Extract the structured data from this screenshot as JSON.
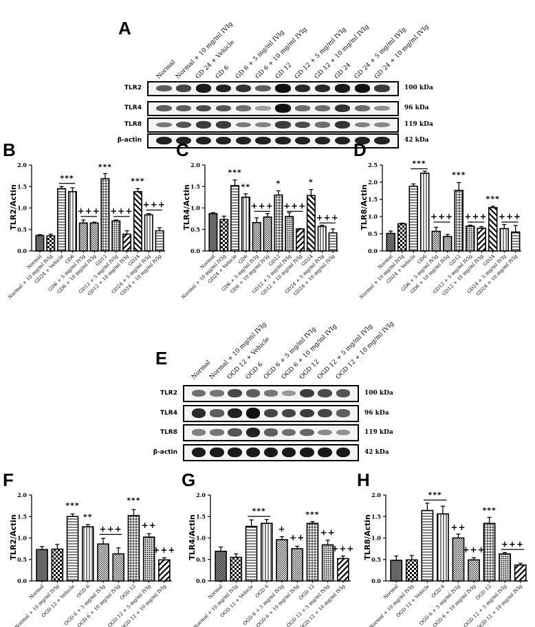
{
  "figure": {
    "panels": {
      "A": {
        "letter": "A",
        "type": "western_blot",
        "lanes": [
          "Normal",
          "Normal + 10 mg/ml IVIg",
          "GD 24 + Vehicle",
          "GD 6",
          "GD 6 + 5 mg/ml IVIg",
          "GD 6 + 10 mg/ml IVIg",
          "GD 12",
          "GD 12 + 5 mg/ml  IVIg",
          "GD 12 + 10 mg/ml IVIg",
          "GD 24",
          "GD 24 + 5 mg/ml IVIg",
          "GD 24 + 10 mg/ml IVIg"
        ],
        "rows": [
          {
            "name": "TLR2",
            "kda": "100 kDa",
            "intensity": [
              0.55,
              0.7,
              0.95,
              0.9,
              0.8,
              0.55,
              1.0,
              0.85,
              0.85,
              0.95,
              1.0,
              0.75
            ]
          },
          {
            "name": "TLR4",
            "kda": "96 kDa",
            "intensity": [
              0.55,
              0.55,
              0.65,
              0.6,
              0.45,
              0.15,
              1.0,
              0.45,
              0.45,
              0.8,
              0.45,
              0.25
            ]
          },
          {
            "name": "TLR8",
            "kda": "119 kDa",
            "intensity": [
              0.4,
              0.6,
              0.75,
              0.75,
              0.4,
              0.35,
              0.75,
              0.65,
              0.45,
              0.8,
              0.35,
              0.3
            ]
          },
          {
            "name": "β-actin",
            "kda": "42 kDa",
            "intensity": [
              0.9,
              0.9,
              0.9,
              0.9,
              0.9,
              0.9,
              0.9,
              0.9,
              0.9,
              0.9,
              0.9,
              0.9
            ]
          }
        ]
      },
      "E": {
        "letter": "E",
        "type": "western_blot",
        "lanes": [
          "Normal",
          "Normal + 10 mg/ml IVIg",
          "OGD 12 + Vehicle",
          "OGD 6",
          "OGD 6 + 5 mg/ml IVIg",
          "OGD 6 + 10 mg/ml IVIg",
          "OGD 12",
          "OGD 12 + 5 mg/ml IVIg",
          "OGD 12 + 10 mg/ml IVIg"
        ],
        "rows": [
          {
            "name": "TLR2",
            "kda": "100 kDa",
            "intensity": [
              0.45,
              0.4,
              0.7,
              0.55,
              0.4,
              0.2,
              0.75,
              0.65,
              0.6
            ]
          },
          {
            "name": "TLR4",
            "kda": "96 kDa",
            "intensity": [
              0.85,
              0.55,
              0.9,
              1.0,
              0.7,
              0.7,
              0.75,
              0.7,
              0.55
            ]
          },
          {
            "name": "TLR8",
            "kda": "119 kDa",
            "intensity": [
              0.35,
              0.4,
              0.6,
              0.9,
              0.55,
              0.45,
              0.5,
              0.3,
              0.25
            ]
          },
          {
            "name": "β-actin",
            "kda": "42 kDa",
            "intensity": [
              0.95,
              0.95,
              0.95,
              0.95,
              0.95,
              0.95,
              0.95,
              0.95,
              0.95
            ]
          }
        ]
      }
    }
  },
  "chart_data": [
    {
      "panel": "B",
      "type": "bar",
      "ylabel": "TLR2/Actin",
      "ylim": [
        0,
        2.0
      ],
      "yticks": [
        "0.0",
        "0.5",
        "1.0",
        "1.5",
        "2.0"
      ],
      "categories": [
        "Normal",
        "Normal + 10 mg/ml IVIg",
        "GD24 + Vehicle",
        "GD6",
        "GD6 + 5 mg/ml IVIg",
        "GD6 + 10 mg/ml IVIg",
        "GD12",
        "GD12 + 5 mg/ml IVIg",
        "GD12 + 10 mg/ml IVIg",
        "GD24",
        "GD24 + 5 mg/ml IVIg",
        "GD24 + 10 mg/ml IVIg"
      ],
      "values": [
        0.36,
        0.35,
        1.45,
        1.38,
        0.65,
        0.65,
        1.68,
        0.7,
        0.39,
        1.38,
        0.84,
        0.47
      ],
      "errors": [
        0.02,
        0.04,
        0.05,
        0.09,
        0.07,
        0.02,
        0.12,
        0.02,
        0.08,
        0.07,
        0.03,
        0.07
      ],
      "patterns": [
        "dense",
        "checker",
        "hlines",
        "vlines",
        "diag",
        "diag2",
        "grid",
        "dots",
        "bigdiag",
        "bigdiag2",
        "vlines",
        "hlines"
      ],
      "annotations": [
        {
          "text": "***",
          "from": 2,
          "to": 3,
          "line": true,
          "y": 1.62
        },
        {
          "text": "+++",
          "from": 4,
          "to": 5,
          "line": true,
          "y": 0.85
        },
        {
          "text": "***",
          "from": 6,
          "to": 6,
          "line": false,
          "y": 1.88
        },
        {
          "text": "+++",
          "from": 7,
          "to": 8,
          "line": true,
          "y": 0.85
        },
        {
          "text": "***",
          "from": 9,
          "to": 9,
          "line": false,
          "y": 1.55
        },
        {
          "text": "+++",
          "from": 10,
          "to": 11,
          "line": true,
          "y": 1.0
        }
      ]
    },
    {
      "panel": "C",
      "type": "bar",
      "ylabel": "TLR4/Actin",
      "ylim": [
        0,
        2.0
      ],
      "yticks": [
        "0.0",
        "0.5",
        "1.0",
        "1.5",
        "2.0"
      ],
      "categories": [
        "Normal",
        "Normal + 10 mg/ml IVIg",
        "GD24 + Vehicle",
        "GD6",
        "GD6 + 5 mg/ml IVIg",
        "GD6 + 10 mg/ml IVIg",
        "GD12",
        "GD12 + 5 mg/ml IVIg",
        "GD12 + 10 mg/ml IVIg",
        "GD24",
        "GD24 + 5 mg/ml IVIg",
        "GD24 + 10 mg/ml IVIg"
      ],
      "values": [
        0.87,
        0.73,
        1.52,
        1.25,
        0.66,
        0.79,
        1.3,
        0.8,
        0.51,
        1.29,
        0.57,
        0.42
      ],
      "errors": [
        0.02,
        0.08,
        0.13,
        0.08,
        0.11,
        0.08,
        0.1,
        0.09,
        0.01,
        0.14,
        0.03,
        0.09
      ],
      "patterns": [
        "dense",
        "checker",
        "hlines",
        "vlines",
        "diag",
        "diag2",
        "grid",
        "dots",
        "bigdiag",
        "bigdiag2",
        "vlines",
        "hlines"
      ],
      "annotations": [
        {
          "text": "***",
          "from": 2,
          "to": 2,
          "line": false,
          "y": 1.75
        },
        {
          "text": "**",
          "from": 3,
          "to": 3,
          "line": false,
          "y": 1.42
        },
        {
          "text": "+++",
          "from": 4,
          "to": 5,
          "line": true,
          "y": 0.97
        },
        {
          "text": "*",
          "from": 6,
          "to": 6,
          "line": false,
          "y": 1.5
        },
        {
          "text": "+++",
          "from": 7,
          "to": 8,
          "line": true,
          "y": 0.97
        },
        {
          "text": "*",
          "from": 9,
          "to": 9,
          "line": false,
          "y": 1.53
        },
        {
          "text": "+++",
          "from": 10,
          "to": 11,
          "line": true,
          "y": 0.7
        }
      ]
    },
    {
      "panel": "D",
      "type": "bar",
      "ylabel": "TLR8/Actin",
      "ylim": [
        0,
        2.5
      ],
      "yticks": [
        "0.0",
        "0.5",
        "1.0",
        "1.5",
        "2.0",
        "2.5"
      ],
      "categories": [
        "Normal",
        "Normal + 10 mg/ml IVIg",
        "GD24 + Vehicle",
        "GD6",
        "GD6 + 5 mg/ml IVIg",
        "GD6 + 10 mg/ml IVIg",
        "GD12",
        "GD12 + 5 mg/ml IVIg",
        "GD12 + 10 mg/ml IVIg",
        "GD24",
        "GD24 + 5 mg/ml IVIg",
        "GD24 + 10 mg/ml IVIg"
      ],
      "values": [
        0.51,
        0.79,
        1.88,
        2.26,
        0.57,
        0.42,
        1.76,
        0.72,
        0.66,
        1.26,
        0.65,
        0.55
      ],
      "errors": [
        0.07,
        0.02,
        0.07,
        0.06,
        0.12,
        0.06,
        0.23,
        0.03,
        0.05,
        0.04,
        0.12,
        0.19
      ],
      "patterns": [
        "dense",
        "checker",
        "hlines",
        "vlines",
        "diag",
        "diag2",
        "grid",
        "dots",
        "bigdiag",
        "bigdiag2",
        "vlines",
        "hlines"
      ],
      "annotations": [
        {
          "text": "***",
          "from": 2,
          "to": 3,
          "line": true,
          "y": 2.45
        },
        {
          "text": "+++",
          "from": 4,
          "to": 5,
          "line": true,
          "y": 0.9
        },
        {
          "text": "***",
          "from": 6,
          "to": 6,
          "line": false,
          "y": 2.12
        },
        {
          "text": "+++",
          "from": 7,
          "to": 8,
          "line": true,
          "y": 0.9
        },
        {
          "text": "***",
          "from": 9,
          "to": 9,
          "line": false,
          "y": 1.42
        },
        {
          "text": "+++",
          "from": 10,
          "to": 11,
          "line": true,
          "y": 0.9
        }
      ]
    },
    {
      "panel": "F",
      "type": "bar",
      "ylabel": "TLR2/Actin",
      "ylim": [
        0,
        2.0
      ],
      "yticks": [
        "0.0",
        "0.5",
        "1.0",
        "1.5",
        "2.0"
      ],
      "categories": [
        "Normal",
        "Normal + 10 mg/ml IVIg",
        "OGD 12 + Vehicle",
        "OGD 6",
        "OGD 6 + 5 mg/ml IVIg",
        "OGD 6 + 10 mg/ml IVIg",
        "OGD 12",
        "OGD 12 + 5 mg/ml IVIg",
        "OGD 12 + 10 mg/ml IVIg"
      ],
      "values": [
        0.73,
        0.74,
        1.5,
        1.26,
        0.86,
        0.63,
        1.52,
        1.02,
        0.49
      ],
      "errors": [
        0.07,
        0.11,
        0.06,
        0.05,
        0.13,
        0.14,
        0.14,
        0.08,
        0.05
      ],
      "patterns": [
        "dense",
        "checker",
        "hlines",
        "vlines",
        "diag",
        "diag2",
        "grid",
        "dots",
        "bigdiag"
      ],
      "annotations": [
        {
          "text": "***",
          "from": 2,
          "to": 2,
          "line": false,
          "y": 1.68
        },
        {
          "text": "**",
          "from": 3,
          "to": 3,
          "line": false,
          "y": 1.42
        },
        {
          "text": "+++",
          "from": 4,
          "to": 5,
          "line": true,
          "y": 1.13
        },
        {
          "text": "***",
          "from": 6,
          "to": 6,
          "line": false,
          "y": 1.8
        },
        {
          "text": "++",
          "from": 7,
          "to": 7,
          "line": false,
          "y": 1.22
        },
        {
          "text": "+++",
          "from": 8,
          "to": 8,
          "line": false,
          "y": 0.64
        }
      ]
    },
    {
      "panel": "G",
      "type": "bar",
      "ylabel": "TLR4/Actin",
      "ylim": [
        0,
        2.0
      ],
      "yticks": [
        "0.0",
        "0.5",
        "1.0",
        "1.5",
        "2.0"
      ],
      "categories": [
        "Normal",
        "Normal + 10 mg/ml IVIg",
        "OGD 12 + Vehicle",
        "OGD 6",
        "OGD 6 + 5 mg/ml IVIg",
        "OGD 6 + 10 mg/ml IVIg",
        "OGD 12",
        "OGD 12 + 5 mg/ml IVIg",
        "OGD 12 + 10 mg/ml IVIg"
      ],
      "values": [
        0.69,
        0.55,
        1.27,
        1.34,
        0.96,
        0.75,
        1.34,
        0.84,
        0.52
      ],
      "errors": [
        0.1,
        0.08,
        0.15,
        0.09,
        0.07,
        0.06,
        0.04,
        0.11,
        0.06
      ],
      "patterns": [
        "dense",
        "checker",
        "hlines",
        "vlines",
        "diag",
        "diag2",
        "grid",
        "dots",
        "bigdiag"
      ],
      "annotations": [
        {
          "text": "***",
          "from": 2,
          "to": 3,
          "line": true,
          "y": 1.55
        },
        {
          "text": "+",
          "from": 4,
          "to": 4,
          "line": false,
          "y": 1.13
        },
        {
          "text": "++",
          "from": 5,
          "to": 5,
          "line": false,
          "y": 0.93
        },
        {
          "text": "***",
          "from": 6,
          "to": 6,
          "line": false,
          "y": 1.47
        },
        {
          "text": "++",
          "from": 7,
          "to": 7,
          "line": false,
          "y": 1.05
        },
        {
          "text": "+++",
          "from": 8,
          "to": 8,
          "line": false,
          "y": 0.67
        }
      ]
    },
    {
      "panel": "H",
      "type": "bar",
      "ylabel": "TLR8/Actin",
      "ylim": [
        0,
        2.0
      ],
      "yticks": [
        "0.0",
        "0.5",
        "1.0",
        "1.5",
        "2.0"
      ],
      "categories": [
        "Normal",
        "Normal + 10 mg/ml IVIg",
        "OGD 12 + Vehicle",
        "OGD 6",
        "OGD 6 + 5 mg/ml IVIg",
        "OGD 6 + 10 mg/ml IVIg",
        "OGD 12",
        "OGD 12 + 5 mg/ml IVIg",
        "OGD 12 + 10 mg/ml IVIg"
      ],
      "values": [
        0.48,
        0.49,
        1.64,
        1.56,
        1.0,
        0.49,
        1.34,
        0.63,
        0.37
      ],
      "errors": [
        0.1,
        0.1,
        0.17,
        0.18,
        0.09,
        0.05,
        0.14,
        0.03,
        0.04
      ],
      "patterns": [
        "dense",
        "checker",
        "hlines",
        "vlines",
        "diag",
        "diag2",
        "grid",
        "dots",
        "bigdiag"
      ],
      "annotations": [
        {
          "text": "***",
          "from": 2,
          "to": 3,
          "line": true,
          "y": 1.93
        },
        {
          "text": "++",
          "from": 4,
          "to": 4,
          "line": false,
          "y": 1.17
        },
        {
          "text": "+++",
          "from": 5,
          "to": 5,
          "line": false,
          "y": 0.65
        },
        {
          "text": "***",
          "from": 6,
          "to": 6,
          "line": false,
          "y": 1.57
        },
        {
          "text": "+++",
          "from": 7,
          "to": 8,
          "line": true,
          "y": 0.78
        }
      ]
    }
  ]
}
